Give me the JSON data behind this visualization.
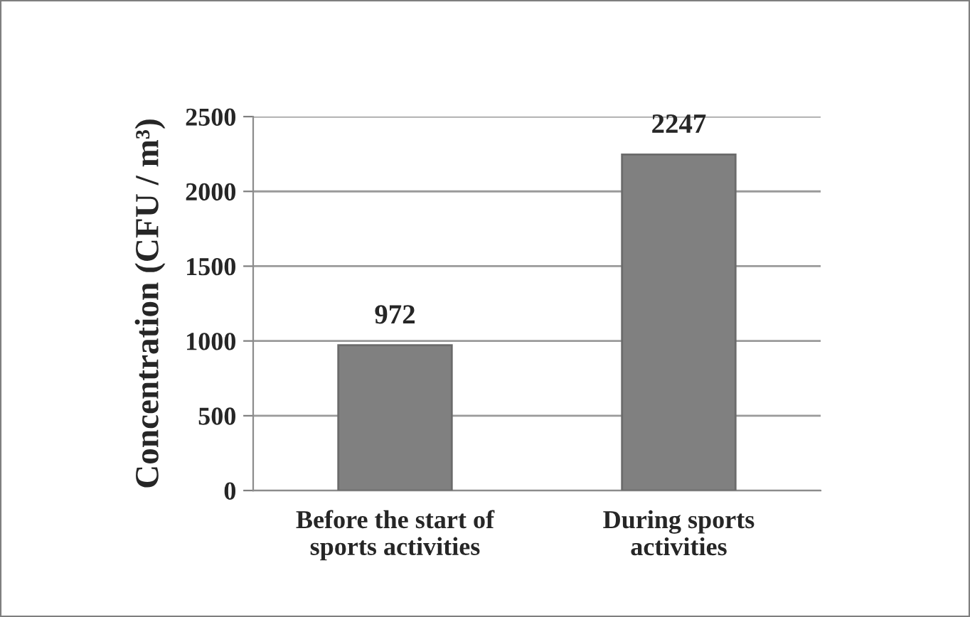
{
  "chart_data": {
    "type": "bar",
    "categories": [
      "Before the start of\nsports activities",
      "During sports\nactivities"
    ],
    "values": [
      972,
      2247
    ],
    "color": "#808080",
    "ylabel": "Concentration (CFU / m³)",
    "ylim": [
      0,
      2500
    ],
    "yticks": [
      0,
      500,
      1000,
      1500,
      2000,
      2500
    ],
    "grid": "y",
    "data_labels": true
  }
}
